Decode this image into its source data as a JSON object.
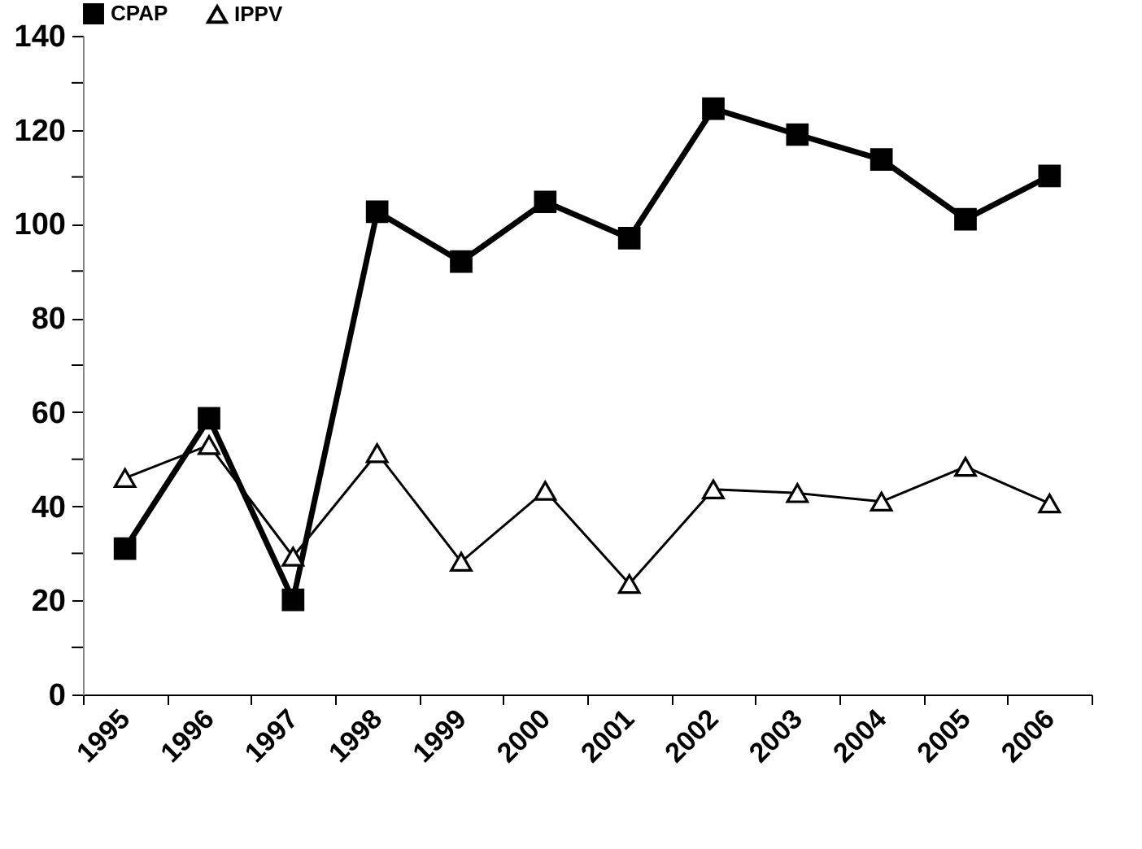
{
  "chart_data": {
    "type": "line",
    "categories": [
      "1995",
      "1996",
      "1997",
      "1998",
      "1999",
      "2000",
      "2001",
      "2002",
      "2003",
      "2004",
      "2005",
      "2006"
    ],
    "series": [
      {
        "name": "CPAP",
        "color": "#000000",
        "marker": "square",
        "values": [
          31,
          58.7,
          20.1,
          102.6,
          92,
          104.7,
          97,
          124.5,
          119,
          113.7,
          101,
          110.2
        ]
      },
      {
        "name": "IPPV",
        "color": "#000000",
        "marker": "triangle",
        "values": [
          46,
          53,
          29.3,
          51.3,
          28.2,
          43.3,
          23.5,
          43.6,
          42.8,
          41,
          48.4,
          40.6
        ]
      }
    ],
    "ylim": [
      0,
      140
    ],
    "yticks": [
      0,
      {
        "value": 10,
        "label": null
      },
      20,
      {
        "value": 30,
        "label": null
      },
      40,
      {
        "value": 50,
        "label": null
      },
      60,
      {
        "value": 70,
        "label": null
      },
      80,
      {
        "value": 90,
        "label": null
      },
      100,
      {
        "value": 110,
        "label": null
      },
      120,
      {
        "value": 130,
        "label": null
      },
      140
    ],
    "grid": false,
    "legend": "top",
    "line_style": "solid"
  }
}
